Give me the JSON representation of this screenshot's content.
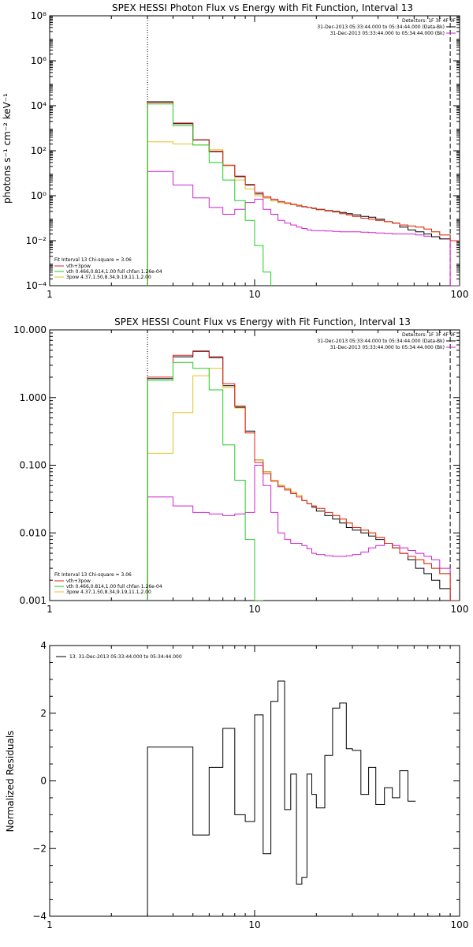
{
  "chart_data": [
    {
      "type": "line",
      "title": "SPEX HESSI Photon Flux vs Energy with Fit Function, Interval 13",
      "ylabel": "photons s⁻¹ cm⁻² keV⁻¹",
      "xlog": true,
      "ylog": true,
      "xlim": [
        1,
        100
      ],
      "ylim": [
        0.0001,
        100000000
      ],
      "x_ticks": [
        "1",
        "10",
        "100"
      ],
      "y_ticks": [
        "10⁻⁴",
        "10⁻²",
        "10⁰",
        "10²",
        "10⁴",
        "10⁶",
        "10⁸"
      ],
      "legend_top": [
        "Detectors: 1F 3F 4F 9F",
        "31-Dec-2013 05:33:44.000 to 05:34:44.000 (Data-Bk)",
        "31-Dec-2013 05:33:44.000 to 05:34:44.000 (Bk)"
      ],
      "legend_bottom": [
        "Fit Interval 13   Chi-square = 3.06",
        "vth+3pow",
        "vth 0.466,0.814,1.00  full chfan 1.26e-04",
        "3pow 4.37,1.50,8.34,9.19,11.1,2.00"
      ],
      "vlines": [
        3,
        90
      ],
      "series": [
        {
          "color": "#000000",
          "x": [
            3,
            4,
            5,
            6,
            7,
            8,
            9,
            10,
            11,
            12,
            13,
            14,
            15,
            16,
            17,
            18,
            19,
            20,
            22,
            24,
            26,
            28,
            30,
            33,
            36,
            39,
            43,
            47,
            51,
            56,
            61,
            67,
            73,
            80,
            90,
            100
          ],
          "y": [
            15000,
            1600,
            300,
            90,
            22,
            7,
            3,
            1.2,
            0.8,
            0.6,
            0.5,
            0.45,
            0.4,
            0.35,
            0.32,
            0.3,
            0.28,
            0.25,
            0.22,
            0.2,
            0.18,
            0.16,
            0.14,
            0.12,
            0.11,
            0.09,
            0.07,
            0.06,
            0.04,
            0.03,
            0.025,
            0.02,
            0.015,
            0.012,
            0.01,
            null
          ]
        },
        {
          "color": "#e02020",
          "x": [
            3,
            4,
            5,
            6,
            7,
            8,
            9,
            10,
            11,
            12,
            13,
            14,
            15,
            16,
            17,
            18,
            19,
            20,
            22,
            24,
            26,
            28,
            30,
            33,
            36,
            39,
            43,
            47,
            51,
            56,
            61,
            67,
            73,
            80,
            90,
            100
          ],
          "y": [
            14000,
            1700,
            310,
            95,
            23,
            7.5,
            3.2,
            1.4,
            0.9,
            0.7,
            0.55,
            0.48,
            0.42,
            0.38,
            0.33,
            0.3,
            0.27,
            0.24,
            0.21,
            0.19,
            0.16,
            0.14,
            0.12,
            0.1,
            0.09,
            0.08,
            0.07,
            0.06,
            0.05,
            0.045,
            0.04,
            0.033,
            0.025,
            0.018,
            0.01,
            null
          ]
        },
        {
          "color": "#22cc22",
          "x": [
            3,
            4,
            5,
            6,
            7,
            8,
            9,
            10,
            11,
            12,
            13,
            100
          ],
          "y": [
            12000,
            1300,
            180,
            30,
            5,
            0.6,
            0.08,
            0.006,
            0.0004,
            3e-05,
            null,
            null
          ]
        },
        {
          "color": "#e8c020",
          "x": [
            3,
            4,
            5,
            6,
            7,
            8,
            9,
            10,
            11,
            12,
            13,
            14,
            15,
            16,
            17,
            18,
            19,
            20,
            22,
            24,
            26,
            28,
            30,
            33,
            36,
            39,
            43,
            47,
            51,
            56,
            61,
            67,
            73,
            80,
            90,
            100
          ],
          "y": [
            250,
            200,
            180,
            110,
            22,
            5,
            2,
            1,
            0.8,
            0.6,
            0.5,
            0.45,
            0.4,
            0.36,
            0.33,
            0.3,
            0.27,
            0.24,
            0.21,
            0.19,
            0.16,
            0.14,
            0.12,
            0.1,
            0.09,
            0.08,
            0.07,
            0.06,
            0.05,
            0.045,
            0.04,
            0.033,
            0.025,
            0.018,
            0.01,
            null
          ]
        },
        {
          "color": "#d020d0",
          "x": [
            3,
            4,
            5,
            6,
            7,
            8,
            9,
            10,
            11,
            12,
            13,
            14,
            15,
            16,
            17,
            18,
            19,
            20,
            22,
            24,
            26,
            28,
            30,
            33,
            36,
            39,
            43,
            47,
            51,
            56,
            61,
            67,
            73,
            80,
            90,
            100
          ],
          "y": [
            12,
            3,
            0.8,
            0.3,
            0.15,
            0.25,
            0.5,
            0.7,
            0.25,
            0.15,
            0.08,
            0.06,
            0.05,
            0.04,
            0.035,
            0.03,
            0.028,
            0.028,
            0.027,
            0.026,
            0.025,
            0.025,
            0.025,
            0.024,
            0.023,
            0.022,
            0.021,
            0.02,
            0.02,
            0.02,
            0.018,
            0.016,
            0.015,
            0.012,
            0.0001,
            null
          ]
        }
      ]
    },
    {
      "type": "line",
      "title": "SPEX HESSI Count Flux vs Energy with Fit Function, Interval 13",
      "xlog": true,
      "ylog": true,
      "xlim": [
        1,
        100
      ],
      "ylim": [
        0.001,
        10
      ],
      "x_ticks": [
        "1",
        "10",
        "100"
      ],
      "y_ticks": [
        "0.001",
        "0.010",
        "0.100",
        "1.000",
        "10.000"
      ],
      "legend_top": [
        "Detectors: 1F 3F 4F 9F",
        "31-Dec-2013 05:33:44.000 to 05:34:44.000 (Data-Bk)",
        "31-Dec-2013 05:33:44.000 to 05:34:44.000 (Bk)"
      ],
      "legend_bottom": [
        "Fit Interval 13   Chi-square = 3.06",
        "vth+3pow",
        "vth 0.466,0.814,1.00  full chfan 1.26e-04",
        "3pow 4.37,1.50,8.34,9.19,11.1,2.00"
      ],
      "vlines": [
        3,
        90
      ],
      "series": [
        {
          "color": "#000000",
          "x": [
            3,
            4,
            5,
            6,
            7,
            8,
            9,
            10,
            11,
            12,
            13,
            14,
            15,
            16,
            17,
            18,
            19,
            20,
            22,
            24,
            26,
            28,
            30,
            33,
            36,
            39,
            43,
            47,
            51,
            56,
            61,
            67,
            73,
            80,
            90,
            100
          ],
          "y": [
            1.9,
            4,
            4.8,
            3.9,
            1.5,
            0.72,
            0.32,
            0.12,
            0.08,
            0.06,
            0.05,
            0.045,
            0.04,
            0.036,
            0.03,
            0.027,
            0.024,
            0.021,
            0.018,
            0.016,
            0.014,
            0.012,
            0.011,
            0.01,
            0.009,
            0.008,
            0.007,
            0.006,
            0.005,
            0.004,
            0.003,
            0.0025,
            0.002,
            0.0015,
            0.001,
            null
          ]
        },
        {
          "color": "#e02020",
          "x": [
            3,
            4,
            5,
            6,
            7,
            8,
            9,
            10,
            11,
            12,
            13,
            14,
            15,
            16,
            17,
            18,
            19,
            20,
            22,
            24,
            26,
            28,
            30,
            33,
            36,
            39,
            43,
            47,
            51,
            56,
            61,
            67,
            73,
            80,
            90,
            100
          ],
          "y": [
            2,
            4.2,
            4.9,
            4,
            1.6,
            0.75,
            0.3,
            0.11,
            0.075,
            0.058,
            0.048,
            0.043,
            0.038,
            0.034,
            0.03,
            0.027,
            0.025,
            0.023,
            0.02,
            0.018,
            0.016,
            0.014,
            0.012,
            0.011,
            0.01,
            0.0085,
            0.007,
            0.006,
            0.005,
            0.0045,
            0.004,
            0.0035,
            0.003,
            0.0025,
            0.001,
            null
          ]
        },
        {
          "color": "#22cc22",
          "x": [
            3,
            4,
            5,
            6,
            7,
            8,
            9,
            10,
            11,
            12,
            100
          ],
          "y": [
            1.8,
            3.3,
            2.7,
            1.3,
            0.2,
            0.06,
            0.008,
            0.001,
            null,
            null,
            null
          ]
        },
        {
          "color": "#e8c020",
          "x": [
            3,
            4,
            5,
            6,
            7,
            8,
            9,
            10,
            11,
            12,
            13,
            14,
            15,
            16,
            17,
            18,
            19,
            20,
            22,
            24,
            26,
            28,
            30,
            33,
            36,
            39,
            43,
            47,
            51,
            56,
            61,
            67,
            73,
            80,
            90,
            100
          ],
          "y": [
            0.15,
            0.6,
            2.1,
            2.7,
            1.4,
            0.7,
            0.3,
            0.12,
            0.08,
            0.06,
            0.05,
            0.045,
            0.04,
            0.036,
            0.03,
            0.027,
            0.025,
            0.023,
            0.02,
            0.018,
            0.016,
            0.014,
            0.012,
            0.011,
            0.01,
            0.0085,
            0.007,
            0.006,
            0.005,
            0.0045,
            0.004,
            0.0035,
            0.003,
            0.0025,
            0.001,
            null
          ]
        },
        {
          "color": "#d020d0",
          "x": [
            3,
            4,
            5,
            6,
            7,
            8,
            9,
            10,
            11,
            12,
            13,
            14,
            15,
            16,
            17,
            18,
            19,
            20,
            22,
            24,
            26,
            28,
            30,
            33,
            36,
            39,
            43,
            47,
            51,
            56,
            61,
            67,
            73,
            80,
            90,
            100
          ],
          "y": [
            0.034,
            0.025,
            0.02,
            0.019,
            0.018,
            0.019,
            0.02,
            0.1,
            0.05,
            0.02,
            0.01,
            0.008,
            0.007,
            0.007,
            0.0065,
            0.0058,
            0.005,
            0.0048,
            0.0046,
            0.0045,
            0.0045,
            0.0046,
            0.0048,
            0.0052,
            0.006,
            0.0065,
            0.007,
            0.0065,
            0.006,
            0.0055,
            0.005,
            0.0045,
            0.004,
            0.003,
            0.001,
            null
          ]
        }
      ]
    },
    {
      "type": "line",
      "ylabel": "Normalized Residuals",
      "xlog": true,
      "ylog": false,
      "xlim": [
        1,
        100
      ],
      "ylim": [
        -4,
        4
      ],
      "x_ticks": [
        "1",
        "10",
        "100"
      ],
      "y_ticks": [
        "−4",
        "−2",
        "0",
        "2",
        "4"
      ],
      "legend_line": "13. 31-Dec-2013 05:33:44.000 to 05:34:44.000",
      "series": [
        {
          "color": "#000000",
          "x": [
            3,
            4,
            5,
            6,
            7,
            8,
            9,
            10,
            11,
            12,
            13,
            14,
            15,
            16,
            17,
            18,
            19,
            20,
            22,
            24,
            26,
            28,
            30,
            33,
            36,
            39,
            43,
            47,
            51,
            56,
            61,
            67,
            73,
            80,
            90,
            100
          ],
          "y": [
            1,
            1,
            -1.6,
            0.4,
            1.55,
            -1,
            -1.2,
            1.95,
            -2.15,
            2.35,
            2.95,
            -0.85,
            0.2,
            -3.05,
            -2.85,
            0.2,
            -0.4,
            -0.8,
            0.75,
            2.15,
            2.3,
            0.95,
            0.9,
            -0.4,
            0.4,
            -0.7,
            -0.2,
            -0.5,
            0.3,
            -0.6,
            null,
            null,
            null,
            null,
            null,
            null
          ]
        }
      ]
    }
  ]
}
